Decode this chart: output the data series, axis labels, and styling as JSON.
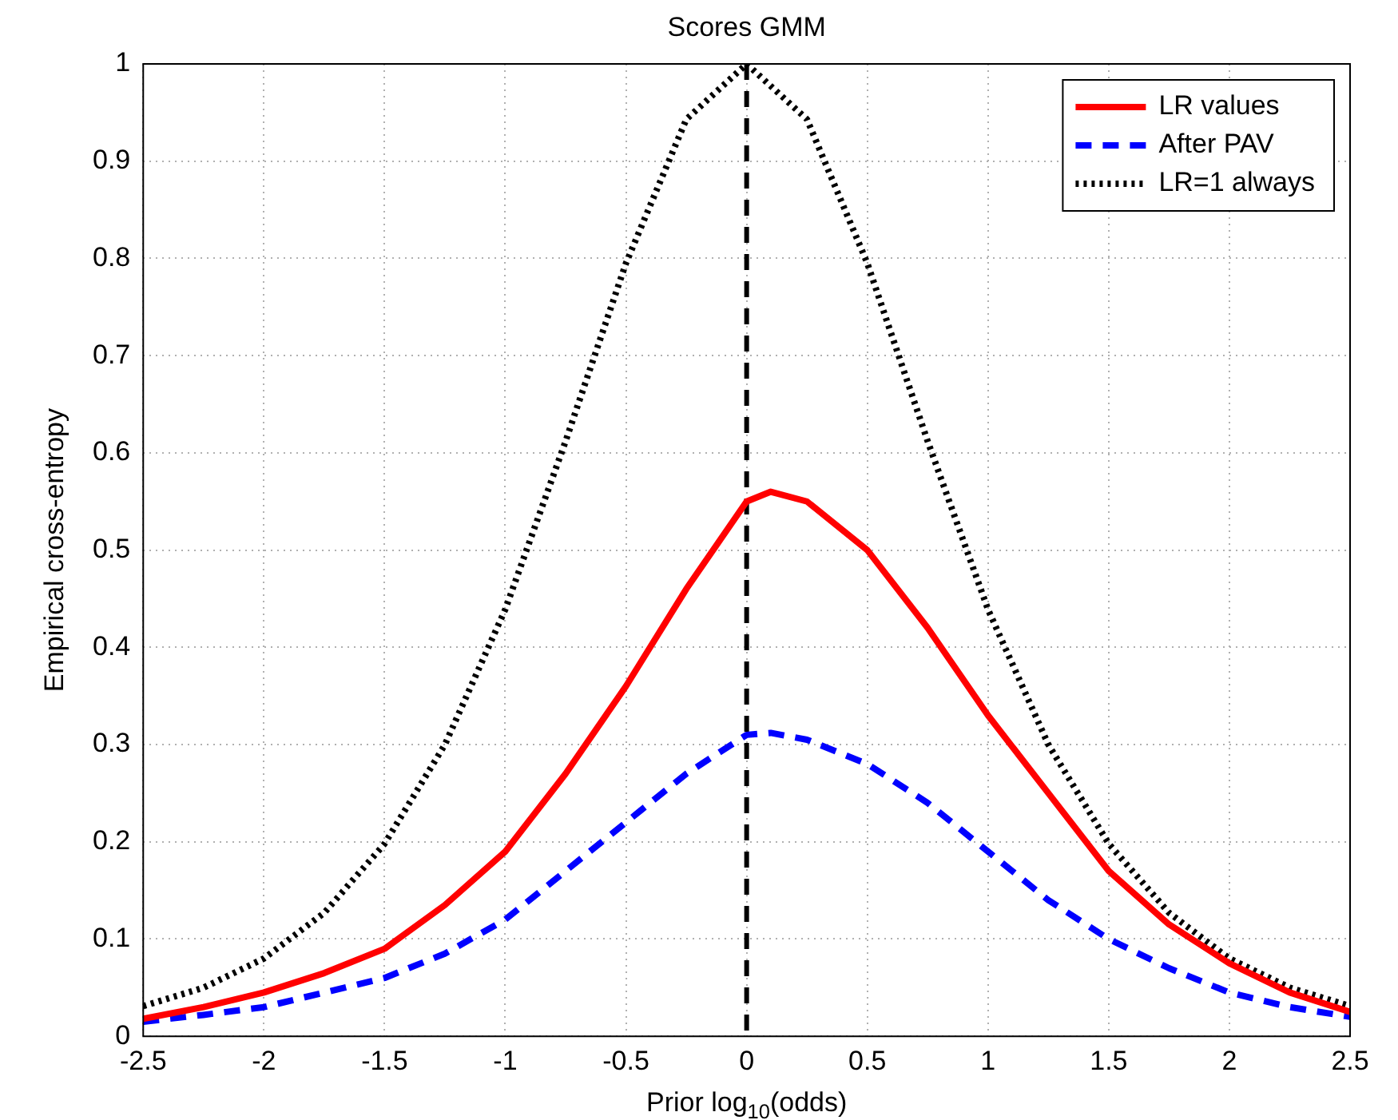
{
  "chart_data": {
    "type": "line",
    "title": "Scores GMM",
    "xlabel": "Prior log$_{10}$(odds)",
    "ylabel": "Empirical cross-entropy",
    "xlim": [
      -2.5,
      2.5
    ],
    "xticks": [
      -2.5,
      -2,
      -1.5,
      -1,
      -0.5,
      0,
      0.5,
      1,
      1.5,
      2,
      2.5
    ],
    "ylim": [
      0,
      1
    ],
    "yticks": [
      0,
      0.1,
      0.2,
      0.3,
      0.4,
      0.5,
      0.6,
      0.7,
      0.8,
      0.9,
      1
    ],
    "grid": true,
    "legend": "top right",
    "marker": "none",
    "ref_lines": [
      {
        "axis": "x",
        "value": 0,
        "color": "#000000",
        "line_style": "dashed"
      }
    ],
    "series": [
      {
        "name": "LR values",
        "color": "#ff0000",
        "line_style": "solid",
        "x": [
          -2.5,
          -2.25,
          -2,
          -1.75,
          -1.5,
          -1.25,
          -1,
          -0.75,
          -0.5,
          -0.25,
          0,
          0.1,
          0.25,
          0.5,
          0.75,
          1,
          1.25,
          1.5,
          1.75,
          2,
          2.25,
          2.5
        ],
        "values": [
          0.018,
          0.03,
          0.045,
          0.065,
          0.09,
          0.135,
          0.19,
          0.27,
          0.36,
          0.46,
          0.55,
          0.56,
          0.55,
          0.5,
          0.42,
          0.33,
          0.25,
          0.17,
          0.115,
          0.075,
          0.045,
          0.025
        ]
      },
      {
        "name": "After PAV",
        "color": "#0000ff",
        "line_style": "dashed",
        "x": [
          -2.5,
          -2.25,
          -2,
          -1.75,
          -1.5,
          -1.25,
          -1,
          -0.75,
          -0.5,
          -0.25,
          0,
          0.1,
          0.25,
          0.5,
          0.75,
          1,
          1.25,
          1.5,
          1.75,
          2,
          2.25,
          2.5
        ],
        "values": [
          0.015,
          0.022,
          0.03,
          0.045,
          0.06,
          0.085,
          0.12,
          0.17,
          0.22,
          0.27,
          0.31,
          0.312,
          0.305,
          0.28,
          0.24,
          0.19,
          0.14,
          0.1,
          0.07,
          0.045,
          0.03,
          0.02
        ]
      },
      {
        "name": "LR=1 always",
        "color": "#000000",
        "line_style": "dotted",
        "x": [
          -2.5,
          -2.25,
          -2,
          -1.75,
          -1.5,
          -1.25,
          -1,
          -0.75,
          -0.5,
          -0.25,
          0,
          0.25,
          0.5,
          0.75,
          1,
          1.25,
          1.5,
          1.75,
          2,
          2.25,
          2.5
        ],
        "values": [
          0.031,
          0.05,
          0.08,
          0.127,
          0.198,
          0.3,
          0.439,
          0.612,
          0.795,
          0.943,
          1,
          0.943,
          0.795,
          0.612,
          0.439,
          0.3,
          0.198,
          0.127,
          0.08,
          0.05,
          0.031
        ]
      }
    ]
  }
}
